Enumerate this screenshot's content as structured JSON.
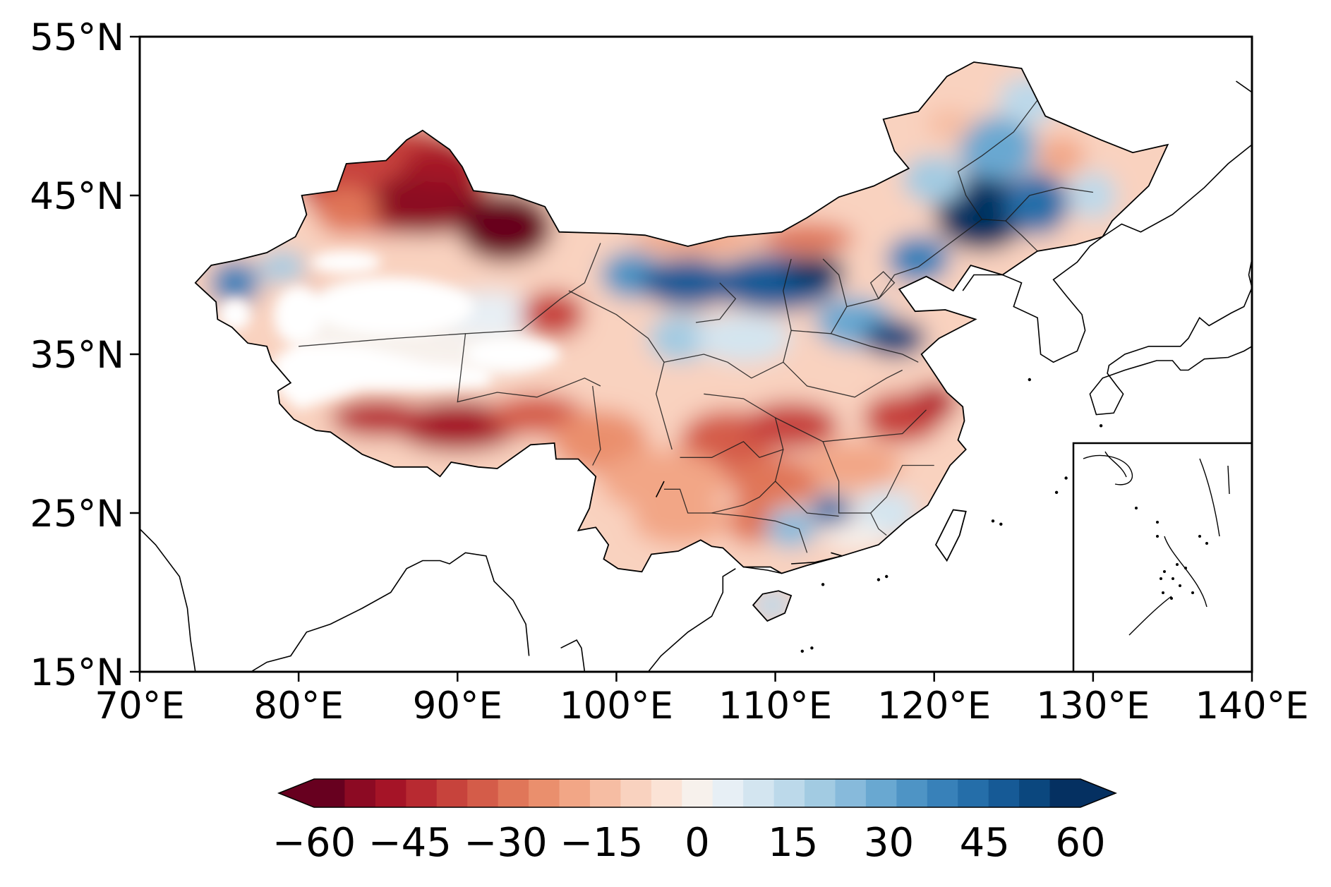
{
  "map": {
    "lon_range": [
      70,
      140
    ],
    "lat_range": [
      15,
      55
    ],
    "x_ticks": [
      {
        "value": 70,
        "label": "70°E"
      },
      {
        "value": 80,
        "label": "80°E"
      },
      {
        "value": 90,
        "label": "90°E"
      },
      {
        "value": 100,
        "label": "100°E"
      },
      {
        "value": 110,
        "label": "110°E"
      },
      {
        "value": 120,
        "label": "120°E"
      },
      {
        "value": 130,
        "label": "130°E"
      },
      {
        "value": 140,
        "label": "140°E"
      }
    ],
    "y_ticks": [
      {
        "value": 55,
        "label": "55°N"
      },
      {
        "value": 45,
        "label": "45°N"
      },
      {
        "value": 35,
        "label": "35°N"
      },
      {
        "value": 25,
        "label": "25°N"
      },
      {
        "value": 15,
        "label": "15°N"
      }
    ],
    "inset": "South China Sea",
    "anomaly_pattern": [
      {
        "region": "Northern Xinjiang",
        "sign": "negative",
        "magnitude": "strong"
      },
      {
        "region": "Tibet (south)",
        "sign": "negative",
        "magnitude": "strong"
      },
      {
        "region": "Southeast / Central China",
        "sign": "negative",
        "magnitude": "moderate"
      },
      {
        "region": "North China Plain",
        "sign": "positive",
        "magnitude": "strong"
      },
      {
        "region": "Northeast China",
        "sign": "positive",
        "magnitude": "strong"
      },
      {
        "region": "Western Xinjiang edge",
        "sign": "positive",
        "magnitude": "moderate"
      },
      {
        "region": "Guangdong / Fujian",
        "sign": "positive",
        "magnitude": "moderate"
      }
    ]
  },
  "colorbar": {
    "min": -60,
    "max": 60,
    "extend": "both",
    "colors": [
      "#67001f",
      "#8c0a23",
      "#a51427",
      "#b82a31",
      "#c7433c",
      "#d45c49",
      "#e07659",
      "#ea8f6d",
      "#f2a686",
      "#f6bda3",
      "#f9d2bf",
      "#fbe3d6",
      "#f7f1ec",
      "#e7eff5",
      "#d3e5f0",
      "#bcd9ea",
      "#a2cbe2",
      "#87badb",
      "#69a8d1",
      "#4e94c5",
      "#3881b9",
      "#256ea9",
      "#165a96",
      "#0b477e",
      "#053061"
    ],
    "ticks": [
      {
        "value": -60,
        "label": "−60"
      },
      {
        "value": -45,
        "label": "−45"
      },
      {
        "value": -30,
        "label": "−30"
      },
      {
        "value": -15,
        "label": "−15"
      },
      {
        "value": 0,
        "label": "0"
      },
      {
        "value": 15,
        "label": "15"
      },
      {
        "value": 30,
        "label": "30"
      },
      {
        "value": 45,
        "label": "45"
      },
      {
        "value": 60,
        "label": "60"
      }
    ]
  }
}
